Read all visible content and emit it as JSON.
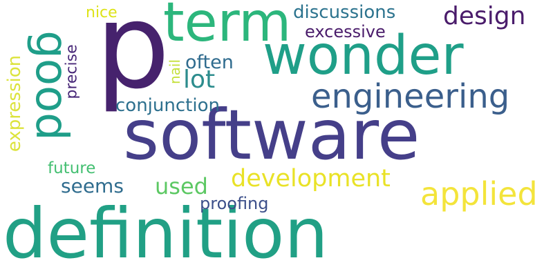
{
  "words": [
    {
      "text": "definition",
      "color": "#21A085",
      "orientation": "horizontal"
    },
    {
      "text": "software",
      "color": "#453F89",
      "orientation": "horizontal"
    },
    {
      "text": "p",
      "color": "#46226D",
      "orientation": "horizontal"
    },
    {
      "text": "wonder",
      "color": "#1F9F88",
      "orientation": "horizontal"
    },
    {
      "text": "term",
      "color": "#2CB67C",
      "orientation": "horizontal"
    },
    {
      "text": "good",
      "color": "#1F9E89",
      "orientation": "vertical"
    },
    {
      "text": "engineering",
      "color": "#3B5F8C",
      "orientation": "horizontal"
    },
    {
      "text": "applied",
      "color": "#F3E43B",
      "orientation": "horizontal"
    },
    {
      "text": "development",
      "color": "#E9E227",
      "orientation": "horizontal"
    },
    {
      "text": "design",
      "color": "#4A1C6B",
      "orientation": "horizontal"
    },
    {
      "text": "discussions",
      "color": "#2C738E",
      "orientation": "horizontal"
    },
    {
      "text": "excessive",
      "color": "#4A1C6B",
      "orientation": "horizontal"
    },
    {
      "text": "expression",
      "color": "#DCE33C",
      "orientation": "vertical"
    },
    {
      "text": "seems",
      "color": "#2F6C8E",
      "orientation": "horizontal"
    },
    {
      "text": "used",
      "color": "#5CC863",
      "orientation": "horizontal"
    },
    {
      "text": "lot",
      "color": "#2C8C8D",
      "orientation": "horizontal"
    },
    {
      "text": "often",
      "color": "#2F6B8E",
      "orientation": "horizontal"
    },
    {
      "text": "conjunction",
      "color": "#2D708E",
      "orientation": "horizontal"
    },
    {
      "text": "proofing",
      "color": "#3C4F8A",
      "orientation": "horizontal"
    },
    {
      "text": "future",
      "color": "#43BF71",
      "orientation": "horizontal"
    },
    {
      "text": "precise",
      "color": "#482878",
      "orientation": "vertical"
    },
    {
      "text": "nail",
      "color": "#C4E03A",
      "orientation": "vertical"
    },
    {
      "text": "nice",
      "color": "#DDE318",
      "orientation": "horizontal"
    }
  ]
}
